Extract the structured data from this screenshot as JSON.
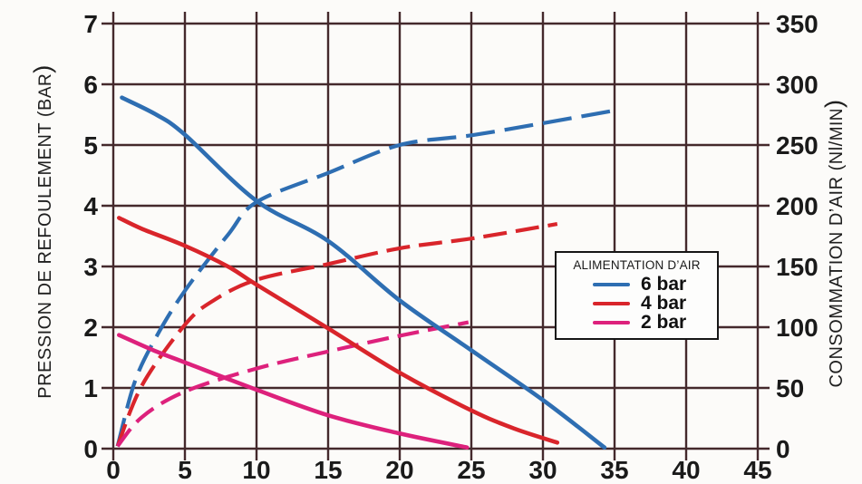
{
  "colors": {
    "blue": "#2e6eb2",
    "red": "#d9252b",
    "magenta": "#dd217c",
    "grid": "#44292c",
    "text": "#1a1a1a",
    "background": "#fcfbf9"
  },
  "legend": {
    "title": "ALIMENTATION D’AIR",
    "items": [
      {
        "label": "6 bar",
        "color": "#2e6eb2"
      },
      {
        "label": "4 bar",
        "color": "#d9252b"
      },
      {
        "label": "2 bar",
        "color": "#dd217c"
      }
    ]
  },
  "chart_data": {
    "type": "line",
    "title": "",
    "grid": true,
    "legend_position": "right-center",
    "x_axis": {
      "min": 0,
      "max": 45,
      "ticks": [
        0,
        5,
        10,
        15,
        20,
        25,
        30,
        35,
        40,
        45
      ]
    },
    "y_left_axis": {
      "label": "PRESSION DE REFOULEMENT (BAR)",
      "label_parts": [
        {
          "text": "PRESSION DE REFOULEMENT (B",
          "size": "n"
        },
        {
          "text": "AR",
          "size": "sm"
        },
        {
          "text": ")",
          "size": "lg"
        }
      ],
      "min": 0,
      "max": 7,
      "ticks": [
        0,
        1,
        2,
        3,
        4,
        5,
        6,
        7
      ]
    },
    "y_right_axis": {
      "label": "CONSOMMATION D’AIR (Nl/MIN)",
      "label_parts": [
        {
          "text": "CONSOMMATION D’AIR (Nl/",
          "size": "n"
        },
        {
          "text": "MIN",
          "size": "sm"
        },
        {
          "text": ")",
          "size": "lg"
        }
      ],
      "min": 0,
      "max": 350,
      "ticks": [
        0,
        50,
        100,
        150,
        200,
        250,
        300,
        350
      ]
    },
    "series": [
      {
        "name": "6 bar – pression de refoulement",
        "axis": "left",
        "style": "solid",
        "color": "#2e6eb2",
        "points": [
          [
            0.6,
            5.78
          ],
          [
            3,
            5.5
          ],
          [
            5,
            5.17
          ],
          [
            10,
            4.08
          ],
          [
            15,
            3.42
          ],
          [
            20,
            2.44
          ],
          [
            25,
            1.62
          ],
          [
            30,
            0.8
          ],
          [
            34.3,
            0.02
          ]
        ]
      },
      {
        "name": "4 bar – pression de refoulement",
        "axis": "left",
        "style": "solid",
        "color": "#d9252b",
        "points": [
          [
            0.4,
            3.8
          ],
          [
            2,
            3.62
          ],
          [
            5,
            3.34
          ],
          [
            8,
            3.0
          ],
          [
            10,
            2.7
          ],
          [
            15,
            1.98
          ],
          [
            20,
            1.25
          ],
          [
            25,
            0.63
          ],
          [
            28,
            0.33
          ],
          [
            31,
            0.1
          ]
        ]
      },
      {
        "name": "2 bar – pression de refoulement",
        "axis": "left",
        "style": "solid",
        "color": "#dd217c",
        "points": [
          [
            0.4,
            1.87
          ],
          [
            3,
            1.6
          ],
          [
            5,
            1.42
          ],
          [
            10,
            0.97
          ],
          [
            15,
            0.55
          ],
          [
            20,
            0.25
          ],
          [
            24.7,
            0.02
          ]
        ]
      },
      {
        "name": "6 bar – consommation d’air",
        "axis": "right",
        "style": "dashed",
        "color": "#2e6eb2",
        "points": [
          [
            0.3,
            2
          ],
          [
            1.5,
            55
          ],
          [
            3,
            92
          ],
          [
            5,
            130
          ],
          [
            8,
            176
          ],
          [
            10,
            203
          ],
          [
            15,
            227
          ],
          [
            20,
            250
          ],
          [
            25,
            258
          ],
          [
            30,
            268
          ],
          [
            35.3,
            279
          ]
        ]
      },
      {
        "name": "4 bar – consommation d’air",
        "axis": "right",
        "style": "dashed",
        "color": "#d9252b",
        "points": [
          [
            0.3,
            2
          ],
          [
            2,
            52
          ],
          [
            5,
            102
          ],
          [
            7,
            122
          ],
          [
            10,
            139
          ],
          [
            15,
            152
          ],
          [
            20,
            165
          ],
          [
            25,
            173
          ],
          [
            31,
            185
          ]
        ]
      },
      {
        "name": "2 bar – consommation d’air",
        "axis": "right",
        "style": "dashed",
        "color": "#dd217c",
        "points": [
          [
            0.3,
            2
          ],
          [
            2,
            26
          ],
          [
            5,
            47
          ],
          [
            10,
            66
          ],
          [
            15,
            80
          ],
          [
            20,
            93
          ],
          [
            24.8,
            104
          ]
        ]
      }
    ]
  }
}
